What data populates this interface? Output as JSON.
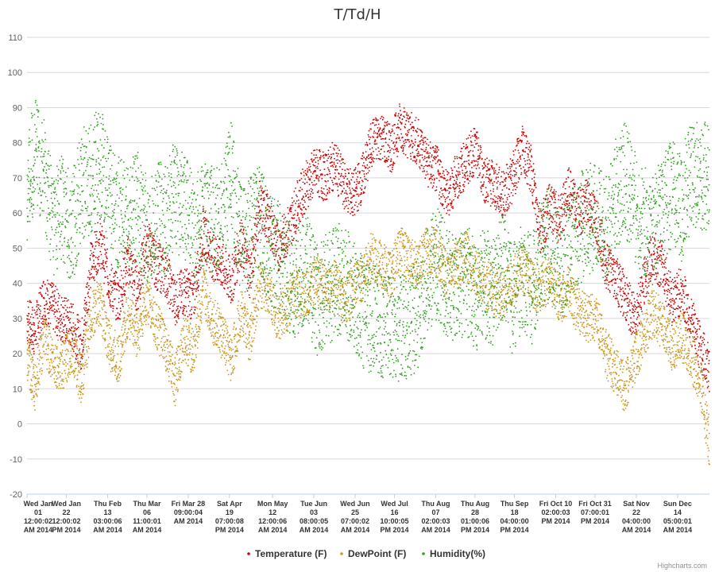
{
  "chart_data": {
    "type": "scatter",
    "title": "T/Td/H",
    "xlabel": "",
    "ylabel": "",
    "ylim": [
      -20,
      110
    ],
    "yticks": [
      -20,
      -10,
      0,
      10,
      20,
      30,
      40,
      50,
      60,
      70,
      80,
      90,
      100,
      110
    ],
    "grid": true,
    "legend_position": "bottom-center",
    "x_range": [
      "2014-01-01",
      "2014-12-31"
    ],
    "x_tick_labels": [
      {
        "date": "2014-01-01",
        "lines": [
          "Wed Jan",
          "01",
          "12:00:02",
          "AM 2014"
        ]
      },
      {
        "date": "2014-01-22",
        "lines": [
          "Wed Jan",
          "22",
          "12:00:02",
          "PM 2014"
        ]
      },
      {
        "date": "2014-02-13",
        "lines": [
          "Thu Feb",
          "13",
          "03:00:06",
          "AM 2014"
        ]
      },
      {
        "date": "2014-03-06",
        "lines": [
          "Thu Mar",
          "06",
          "11:00:01",
          "AM 2014"
        ]
      },
      {
        "date": "2014-03-28",
        "lines": [
          "Fri Mar 28",
          "09:00:04",
          "AM 2014"
        ]
      },
      {
        "date": "2014-04-19",
        "lines": [
          "Sat Apr",
          "19",
          "07:00:08",
          "PM 2014"
        ]
      },
      {
        "date": "2014-05-12",
        "lines": [
          "Mon May",
          "12",
          "12:00:06",
          "AM 2014"
        ]
      },
      {
        "date": "2014-06-03",
        "lines": [
          "Tue Jun",
          "03",
          "08:00:05",
          "AM 2014"
        ]
      },
      {
        "date": "2014-06-25",
        "lines": [
          "Wed Jun",
          "25",
          "07:00:02",
          "AM 2014"
        ]
      },
      {
        "date": "2014-07-16",
        "lines": [
          "Wed Jul",
          "16",
          "10:00:05",
          "PM 2014"
        ]
      },
      {
        "date": "2014-08-07",
        "lines": [
          "Thu Aug",
          "07",
          "02:00:03",
          "AM 2014"
        ]
      },
      {
        "date": "2014-08-28",
        "lines": [
          "Thu Aug",
          "28",
          "01:00:06",
          "PM 2014"
        ]
      },
      {
        "date": "2014-09-18",
        "lines": [
          "Thu Sep",
          "18",
          "04:00:00",
          "PM 2014"
        ]
      },
      {
        "date": "2014-10-10",
        "lines": [
          "Fri Oct 10",
          "02:00:03",
          "PM 2014"
        ]
      },
      {
        "date": "2014-10-31",
        "lines": [
          "Fri Oct 31",
          "07:00:01",
          "PM 2014"
        ]
      },
      {
        "date": "2014-11-22",
        "lines": [
          "Sat Nov",
          "22",
          "04:00:00",
          "AM 2014"
        ]
      },
      {
        "date": "2014-12-14",
        "lines": [
          "Sun Dec",
          "14",
          "05:00:01",
          "AM 2014"
        ]
      }
    ],
    "series": [
      {
        "name": "Temperature (F)",
        "color": "#cc0000",
        "marker": "dot",
        "x": [
          "2014-01-01",
          "2014-01-05",
          "2014-01-10",
          "2014-01-15",
          "2014-01-20",
          "2014-01-25",
          "2014-01-30",
          "2014-02-04",
          "2014-02-09",
          "2014-02-14",
          "2014-02-19",
          "2014-02-24",
          "2014-03-01",
          "2014-03-06",
          "2014-03-11",
          "2014-03-16",
          "2014-03-21",
          "2014-03-26",
          "2014-03-31",
          "2014-04-05",
          "2014-04-10",
          "2014-04-15",
          "2014-04-20",
          "2014-04-25",
          "2014-04-30",
          "2014-05-05",
          "2014-05-10",
          "2014-05-15",
          "2014-05-20",
          "2014-05-25",
          "2014-05-30",
          "2014-06-04",
          "2014-06-09",
          "2014-06-14",
          "2014-06-19",
          "2014-06-24",
          "2014-06-29",
          "2014-07-04",
          "2014-07-09",
          "2014-07-14",
          "2014-07-19",
          "2014-07-24",
          "2014-07-29",
          "2014-08-03",
          "2014-08-08",
          "2014-08-13",
          "2014-08-18",
          "2014-08-23",
          "2014-08-28",
          "2014-09-02",
          "2014-09-07",
          "2014-09-12",
          "2014-09-17",
          "2014-09-22",
          "2014-09-27",
          "2014-10-02",
          "2014-10-07",
          "2014-10-12",
          "2014-10-17",
          "2014-10-22",
          "2014-10-27",
          "2014-11-01",
          "2014-11-06",
          "2014-11-11",
          "2014-11-16",
          "2014-11-21",
          "2014-11-26",
          "2014-12-01",
          "2014-12-06",
          "2014-12-11",
          "2014-12-16",
          "2014-12-21",
          "2014-12-26",
          "2014-12-31"
        ],
        "y": [
          30,
          26,
          36,
          33,
          30,
          28,
          22,
          45,
          52,
          40,
          35,
          47,
          38,
          52,
          45,
          43,
          35,
          38,
          36,
          55,
          48,
          45,
          40,
          52,
          42,
          62,
          58,
          50,
          55,
          62,
          68,
          72,
          70,
          74,
          68,
          65,
          70,
          80,
          82,
          78,
          85,
          82,
          80,
          74,
          72,
          65,
          70,
          74,
          78,
          70,
          68,
          65,
          70,
          78,
          72,
          55,
          62,
          58,
          66,
          60,
          63,
          58,
          45,
          42,
          36,
          30,
          40,
          48,
          45,
          35,
          38,
          30,
          22,
          15
        ]
      },
      {
        "name": "DewPoint (F)",
        "color": "#c8961e",
        "marker": "dot",
        "x": [
          "2014-01-01",
          "2014-01-05",
          "2014-01-10",
          "2014-01-15",
          "2014-01-20",
          "2014-01-25",
          "2014-01-30",
          "2014-02-04",
          "2014-02-09",
          "2014-02-14",
          "2014-02-19",
          "2014-02-24",
          "2014-03-01",
          "2014-03-06",
          "2014-03-11",
          "2014-03-16",
          "2014-03-21",
          "2014-03-26",
          "2014-03-31",
          "2014-04-05",
          "2014-04-10",
          "2014-04-15",
          "2014-04-20",
          "2014-04-25",
          "2014-04-30",
          "2014-05-05",
          "2014-05-10",
          "2014-05-15",
          "2014-05-20",
          "2014-05-25",
          "2014-05-30",
          "2014-06-04",
          "2014-06-09",
          "2014-06-14",
          "2014-06-19",
          "2014-06-24",
          "2014-06-29",
          "2014-07-04",
          "2014-07-09",
          "2014-07-14",
          "2014-07-19",
          "2014-07-24",
          "2014-07-29",
          "2014-08-03",
          "2014-08-08",
          "2014-08-13",
          "2014-08-18",
          "2014-08-23",
          "2014-08-28",
          "2014-09-02",
          "2014-09-07",
          "2014-09-12",
          "2014-09-17",
          "2014-09-22",
          "2014-09-27",
          "2014-10-02",
          "2014-10-07",
          "2014-10-12",
          "2014-10-17",
          "2014-10-22",
          "2014-10-27",
          "2014-11-01",
          "2014-11-06",
          "2014-11-11",
          "2014-11-16",
          "2014-11-21",
          "2014-11-26",
          "2014-12-01",
          "2014-12-06",
          "2014-12-11",
          "2014-12-16",
          "2014-12-21",
          "2014-12-26",
          "2014-12-31"
        ],
        "y": [
          20,
          10,
          24,
          18,
          16,
          22,
          12,
          30,
          35,
          22,
          18,
          32,
          25,
          36,
          28,
          22,
          12,
          25,
          20,
          38,
          30,
          25,
          18,
          32,
          24,
          40,
          38,
          30,
          34,
          38,
          36,
          42,
          38,
          40,
          35,
          38,
          42,
          48,
          45,
          42,
          50,
          46,
          45,
          50,
          48,
          42,
          45,
          48,
          44,
          40,
          38,
          36,
          40,
          45,
          40,
          38,
          42,
          35,
          38,
          32,
          30,
          30,
          20,
          15,
          10,
          18,
          25,
          32,
          28,
          22,
          25,
          20,
          12,
          -5
        ]
      },
      {
        "name": "Humidity(%)",
        "color": "#2f9e1e",
        "marker": "dot",
        "x": [
          "2014-01-01",
          "2014-01-05",
          "2014-01-10",
          "2014-01-15",
          "2014-01-20",
          "2014-01-25",
          "2014-01-30",
          "2014-02-04",
          "2014-02-09",
          "2014-02-14",
          "2014-02-19",
          "2014-02-24",
          "2014-03-01",
          "2014-03-06",
          "2014-03-11",
          "2014-03-16",
          "2014-03-21",
          "2014-03-26",
          "2014-03-31",
          "2014-04-05",
          "2014-04-10",
          "2014-04-15",
          "2014-04-20",
          "2014-04-25",
          "2014-04-30",
          "2014-05-05",
          "2014-05-10",
          "2014-05-15",
          "2014-05-20",
          "2014-05-25",
          "2014-05-30",
          "2014-06-04",
          "2014-06-09",
          "2014-06-14",
          "2014-06-19",
          "2014-06-24",
          "2014-06-29",
          "2014-07-04",
          "2014-07-09",
          "2014-07-14",
          "2014-07-19",
          "2014-07-24",
          "2014-07-29",
          "2014-08-03",
          "2014-08-08",
          "2014-08-13",
          "2014-08-18",
          "2014-08-23",
          "2014-08-28",
          "2014-09-02",
          "2014-09-07",
          "2014-09-12",
          "2014-09-17",
          "2014-09-22",
          "2014-09-27",
          "2014-10-02",
          "2014-10-07",
          "2014-10-12",
          "2014-10-17",
          "2014-10-22",
          "2014-10-27",
          "2014-11-01",
          "2014-11-06",
          "2014-11-11",
          "2014-11-16",
          "2014-11-21",
          "2014-11-26",
          "2014-12-01",
          "2014-12-06",
          "2014-12-11",
          "2014-12-16",
          "2014-12-21",
          "2014-12-26",
          "2014-12-31"
        ],
        "y": [
          65,
          78,
          72,
          58,
          62,
          55,
          68,
          70,
          75,
          65,
          60,
          58,
          62,
          55,
          60,
          58,
          65,
          62,
          55,
          60,
          58,
          62,
          70,
          52,
          55,
          58,
          50,
          48,
          42,
          40,
          45,
          35,
          38,
          40,
          42,
          36,
          32,
          30,
          28,
          30,
          26,
          28,
          32,
          42,
          46,
          40,
          38,
          42,
          36,
          40,
          38,
          45,
          35,
          42,
          38,
          48,
          52,
          45,
          50,
          55,
          58,
          60,
          55,
          65,
          70,
          62,
          58,
          55,
          60,
          65,
          62,
          70,
          72,
          68
        ]
      }
    ]
  },
  "legend": {
    "items": [
      {
        "label": "Temperature (F)",
        "color": "#cc0000"
      },
      {
        "label": "DewPoint (F)",
        "color": "#c8961e"
      },
      {
        "label": "Humidity(%)",
        "color": "#2f9e1e"
      }
    ]
  },
  "credit": "Highcharts.com",
  "colors": {
    "grid": "#d8d8d8",
    "axis": "#c0d0e0",
    "text": "#333333"
  }
}
